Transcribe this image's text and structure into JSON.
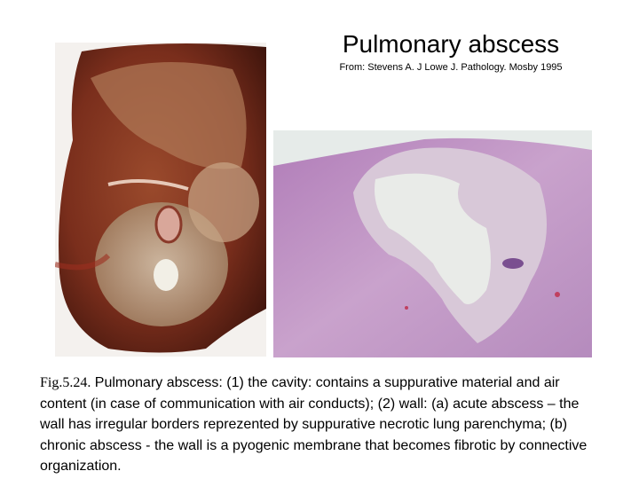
{
  "header": {
    "title": "Pulmonary abscess",
    "source": "From: Stevens A. J Lowe J. Pathology. Mosby 1995"
  },
  "caption": {
    "figure_label": "Fig.5.24.",
    "text": "Pulmonary abscess: (1) the cavity: contains a suppurative material and air content (in case of communication with air conducts); (2) wall: (a) acute abscess – the wall has irregular borders reprezented by suppurative necrotic lung parenchyma; (b) chronic abscess - the wall is a pyogenic membrane that becomes fibrotic by connective organization."
  }
}
